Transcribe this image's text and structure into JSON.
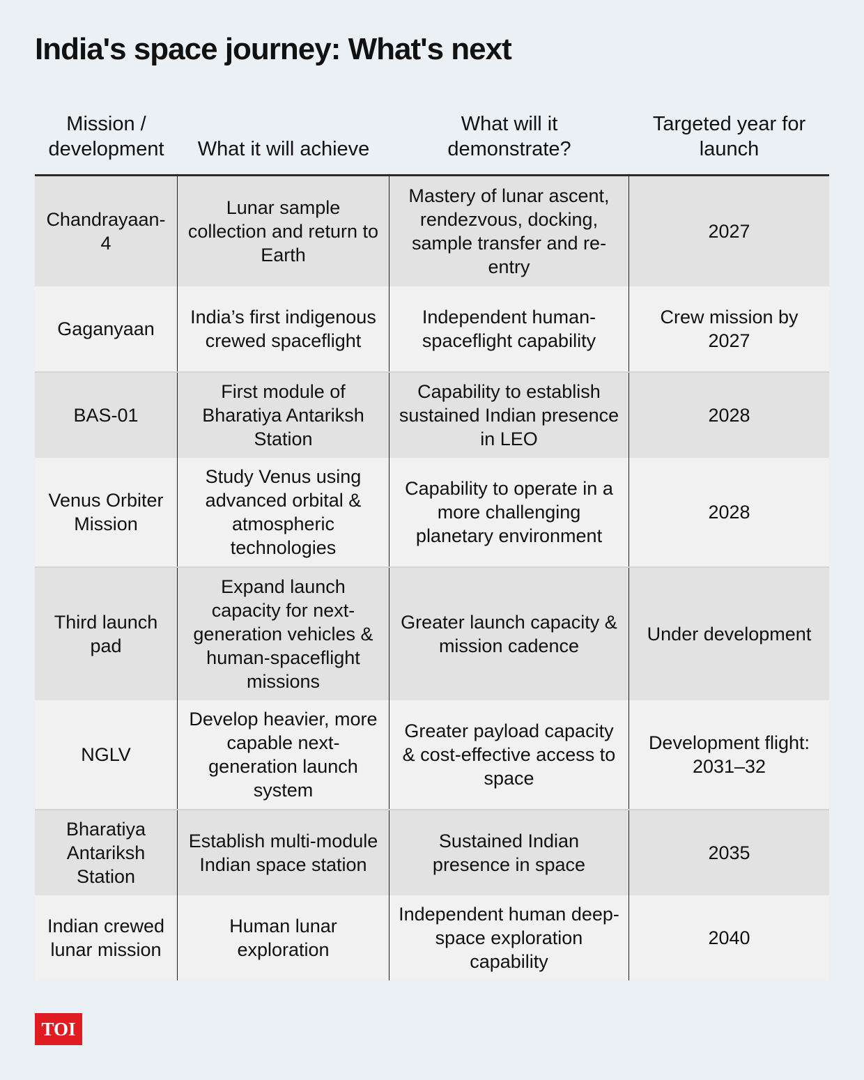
{
  "title": "India's space journey: What's next",
  "table": {
    "headers": [
      "Mission / development",
      "What it will achieve",
      "What will it demonstrate?",
      "Targeted year for launch"
    ],
    "rows": [
      {
        "mission": "Chandrayaan-4",
        "achieve": "Lunar sample collection and return to Earth",
        "demonstrate": "Mastery of lunar ascent, rendezvous, docking, sample transfer and re-entry",
        "year": "2027"
      },
      {
        "mission": "Gaganyaan",
        "achieve": "India’s first indigenous crewed spaceflight",
        "demonstrate": "Independent human-spaceflight capability",
        "year": "Crew mission by 2027"
      },
      {
        "mission": "BAS-01",
        "achieve": "First module of Bharatiya Antariksh Station",
        "demonstrate": "Capability to establish sustained Indian presence in LEO",
        "year": "2028"
      },
      {
        "mission": "Venus Orbiter Mission",
        "achieve": "Study Venus using advanced orbital & atmospheric technologies",
        "demonstrate": "Capability to operate in a more challenging planetary environment",
        "year": "2028"
      },
      {
        "mission": "Third launch pad",
        "achieve": "Expand launch capacity for next-generation vehicles & human-spaceflight missions",
        "demonstrate": "Greater launch capacity & mission cadence",
        "year": "Under development"
      },
      {
        "mission": "NGLV",
        "achieve": "Develop heavier, more capable next-generation launch system",
        "demonstrate": "Greater payload capacity & cost-effective access to space",
        "year": "Development flight: 2031–32"
      },
      {
        "mission": "Bharatiya Antariksh Station",
        "achieve": "Establish multi-module Indian space station",
        "demonstrate": "Sustained Indian presence in space",
        "year": "2035"
      },
      {
        "mission": "Indian crewed lunar mission",
        "achieve": "Human lunar exploration",
        "demonstrate": "Independent human deep-space exploration capability",
        "year": "2040"
      }
    ]
  },
  "logo": {
    "text": "TOI",
    "color": "#e11b22"
  },
  "colors": {
    "background": "#ebf0f4",
    "row_dark": "#e2e2e2",
    "row_light": "#f1f1f1"
  }
}
